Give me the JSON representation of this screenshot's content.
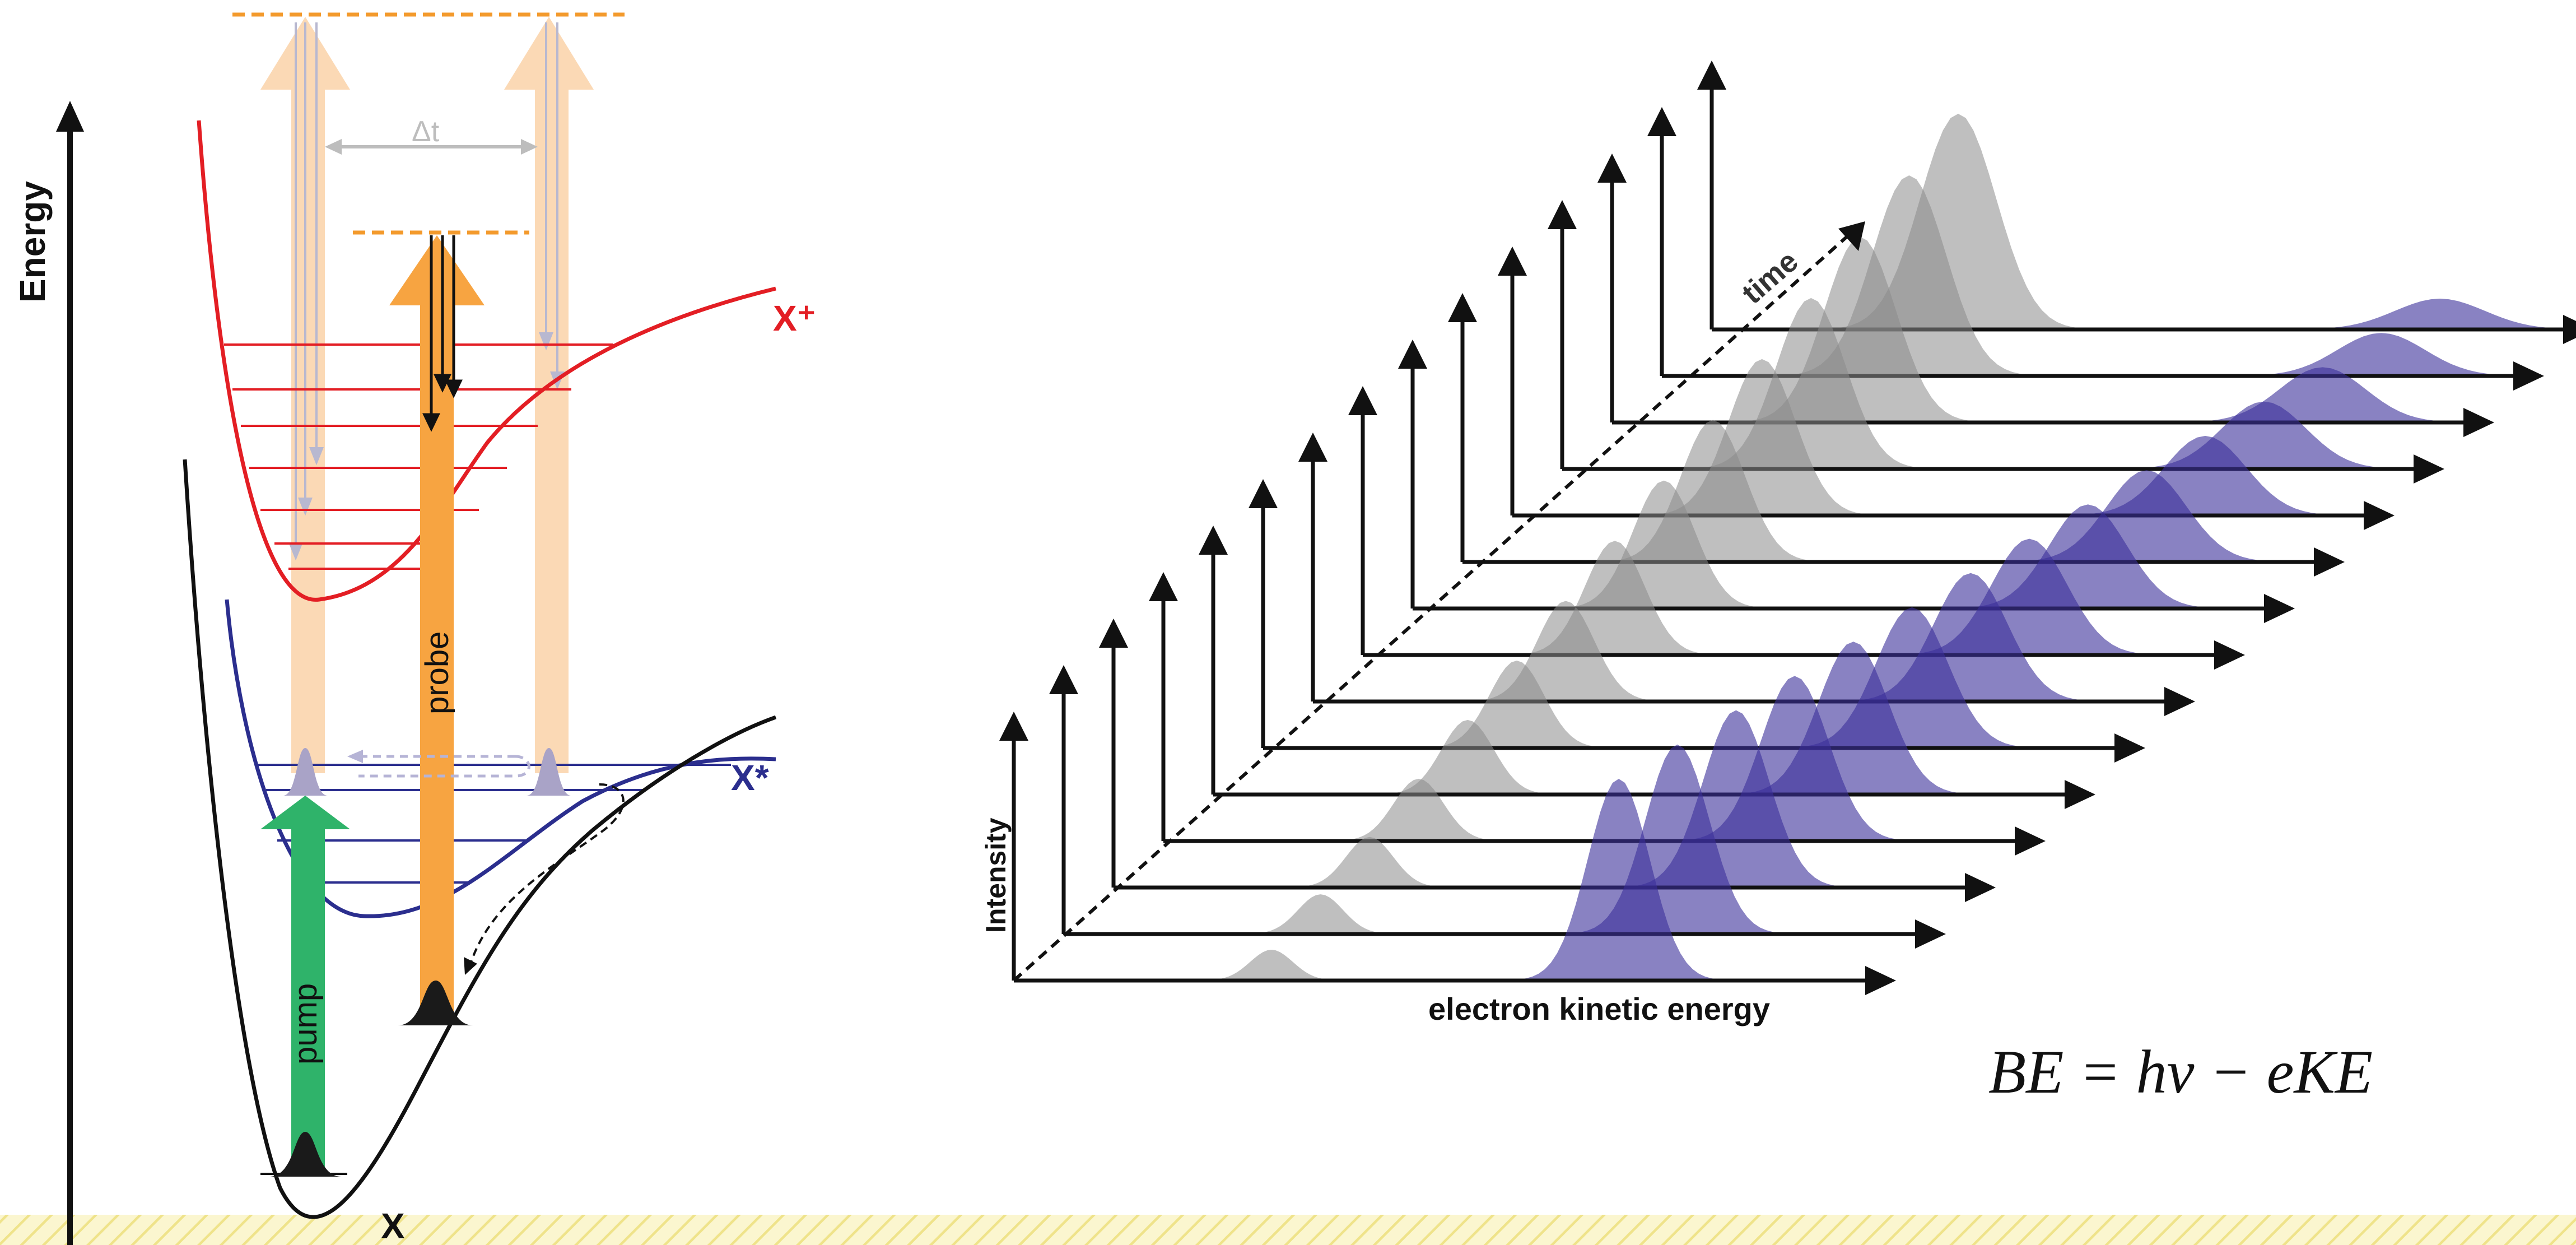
{
  "left_panel": {
    "energy_axis_label": "Energy",
    "delta_t_label": "Δt",
    "cation_label": "X⁺",
    "excited_label": "X*",
    "ground_label": "X",
    "pump_label": "pump",
    "probe_label": "probe"
  },
  "right_panel": {
    "intensity_label": "Intensity",
    "x_axis_label": "electron kinetic energy",
    "time_label": "time",
    "trace_count": 15,
    "equation": "BE = hν − eKE"
  },
  "colors": {
    "cation_curve": "#e31e24",
    "excited_curve": "#2b2e8e",
    "ground_curve": "#111111",
    "pump_arrow": "#2fb36a",
    "probe_arrow": "#f7a441",
    "probe_arrow_faded": "#fbd9b5",
    "dashed_level": "#f39a2c",
    "gray_peak": "#8a8a8a",
    "blue_peak": "#3a2f99",
    "bottom_hatch": "#f3ea9a"
  }
}
